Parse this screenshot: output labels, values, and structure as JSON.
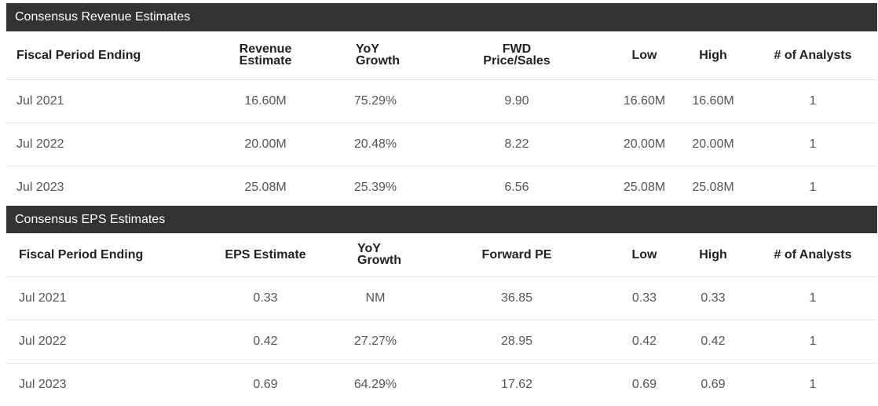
{
  "revenue": {
    "title": "Consensus Revenue Estimates",
    "headers": {
      "period": "Fiscal Period Ending",
      "estimate_line1": "Revenue",
      "estimate_line2": "Estimate",
      "growth": "YoY Growth",
      "metric_line1": "FWD",
      "metric_line2": "Price/Sales",
      "low": "Low",
      "high": "High",
      "analysts": "# of Analysts"
    },
    "rows": [
      {
        "period": "Jul 2021",
        "estimate": "16.60M",
        "growth": "75.29%",
        "metric": "9.90",
        "low": "16.60M",
        "high": "16.60M",
        "analysts": "1"
      },
      {
        "period": "Jul 2022",
        "estimate": "20.00M",
        "growth": "20.48%",
        "metric": "8.22",
        "low": "20.00M",
        "high": "20.00M",
        "analysts": "1"
      },
      {
        "period": "Jul 2023",
        "estimate": "25.08M",
        "growth": "25.39%",
        "metric": "6.56",
        "low": "25.08M",
        "high": "25.08M",
        "analysts": "1"
      }
    ]
  },
  "eps": {
    "title": "Consensus EPS Estimates",
    "headers": {
      "period": "Fiscal Period Ending",
      "estimate": "EPS Estimate",
      "growth": "YoY Growth",
      "metric": "Forward PE",
      "low": "Low",
      "high": "High",
      "analysts": "# of Analysts"
    },
    "rows": [
      {
        "period": "Jul 2021",
        "estimate": "0.33",
        "growth": "NM",
        "metric": "36.85",
        "low": "0.33",
        "high": "0.33",
        "analysts": "1"
      },
      {
        "period": "Jul 2022",
        "estimate": "0.42",
        "growth": "27.27%",
        "metric": "28.95",
        "low": "0.42",
        "high": "0.42",
        "analysts": "1"
      },
      {
        "period": "Jul 2023",
        "estimate": "0.69",
        "growth": "64.29%",
        "metric": "17.62",
        "low": "0.69",
        "high": "0.69",
        "analysts": "1"
      }
    ]
  },
  "colors": {
    "header_bg": "#333333",
    "header_text": "#ffffff",
    "row_border": "#e3e3e3"
  }
}
